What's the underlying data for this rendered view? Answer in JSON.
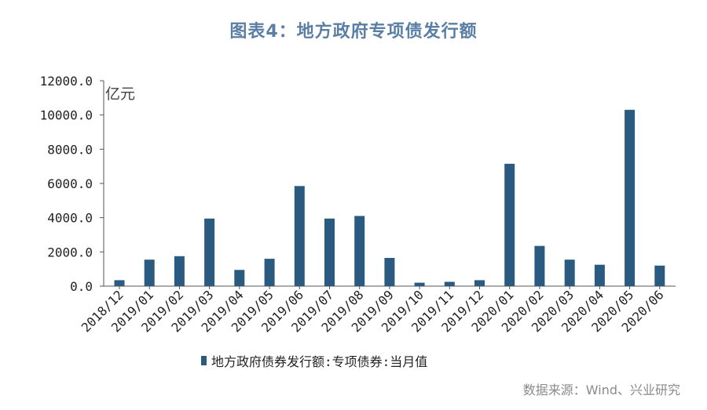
{
  "title": "图表4：地方政府专项债发行额",
  "source": "数据来源：Wind、兴业研究",
  "colors": {
    "bar": "#2b5a80",
    "title": "#5b7ea4",
    "axis": "#555555"
  },
  "chart_data": {
    "type": "bar",
    "title": "图表4：地方政府专项债发行额",
    "ylabel": "亿元",
    "ylim": [
      0,
      12000
    ],
    "yticks": [
      "0.0",
      "2000.0",
      "4000.0",
      "6000.0",
      "8000.0",
      "10000.0",
      "12000.0"
    ],
    "grid": false,
    "legend_position": "bottom",
    "categories": [
      "2018/12",
      "2019/01",
      "2019/02",
      "2019/03",
      "2019/04",
      "2019/05",
      "2019/06",
      "2019/07",
      "2019/08",
      "2019/09",
      "2019/10",
      "2019/11",
      "2019/12",
      "2020/01",
      "2020/02",
      "2020/03",
      "2020/04",
      "2020/05",
      "2020/06"
    ],
    "series": [
      {
        "name": "地方政府债券发行额:专项债券:当月值",
        "values": [
          350,
          1550,
          1750,
          3950,
          950,
          1600,
          5850,
          3950,
          4100,
          1650,
          200,
          250,
          350,
          7150,
          2350,
          1550,
          1250,
          10300,
          1200
        ]
      }
    ]
  }
}
